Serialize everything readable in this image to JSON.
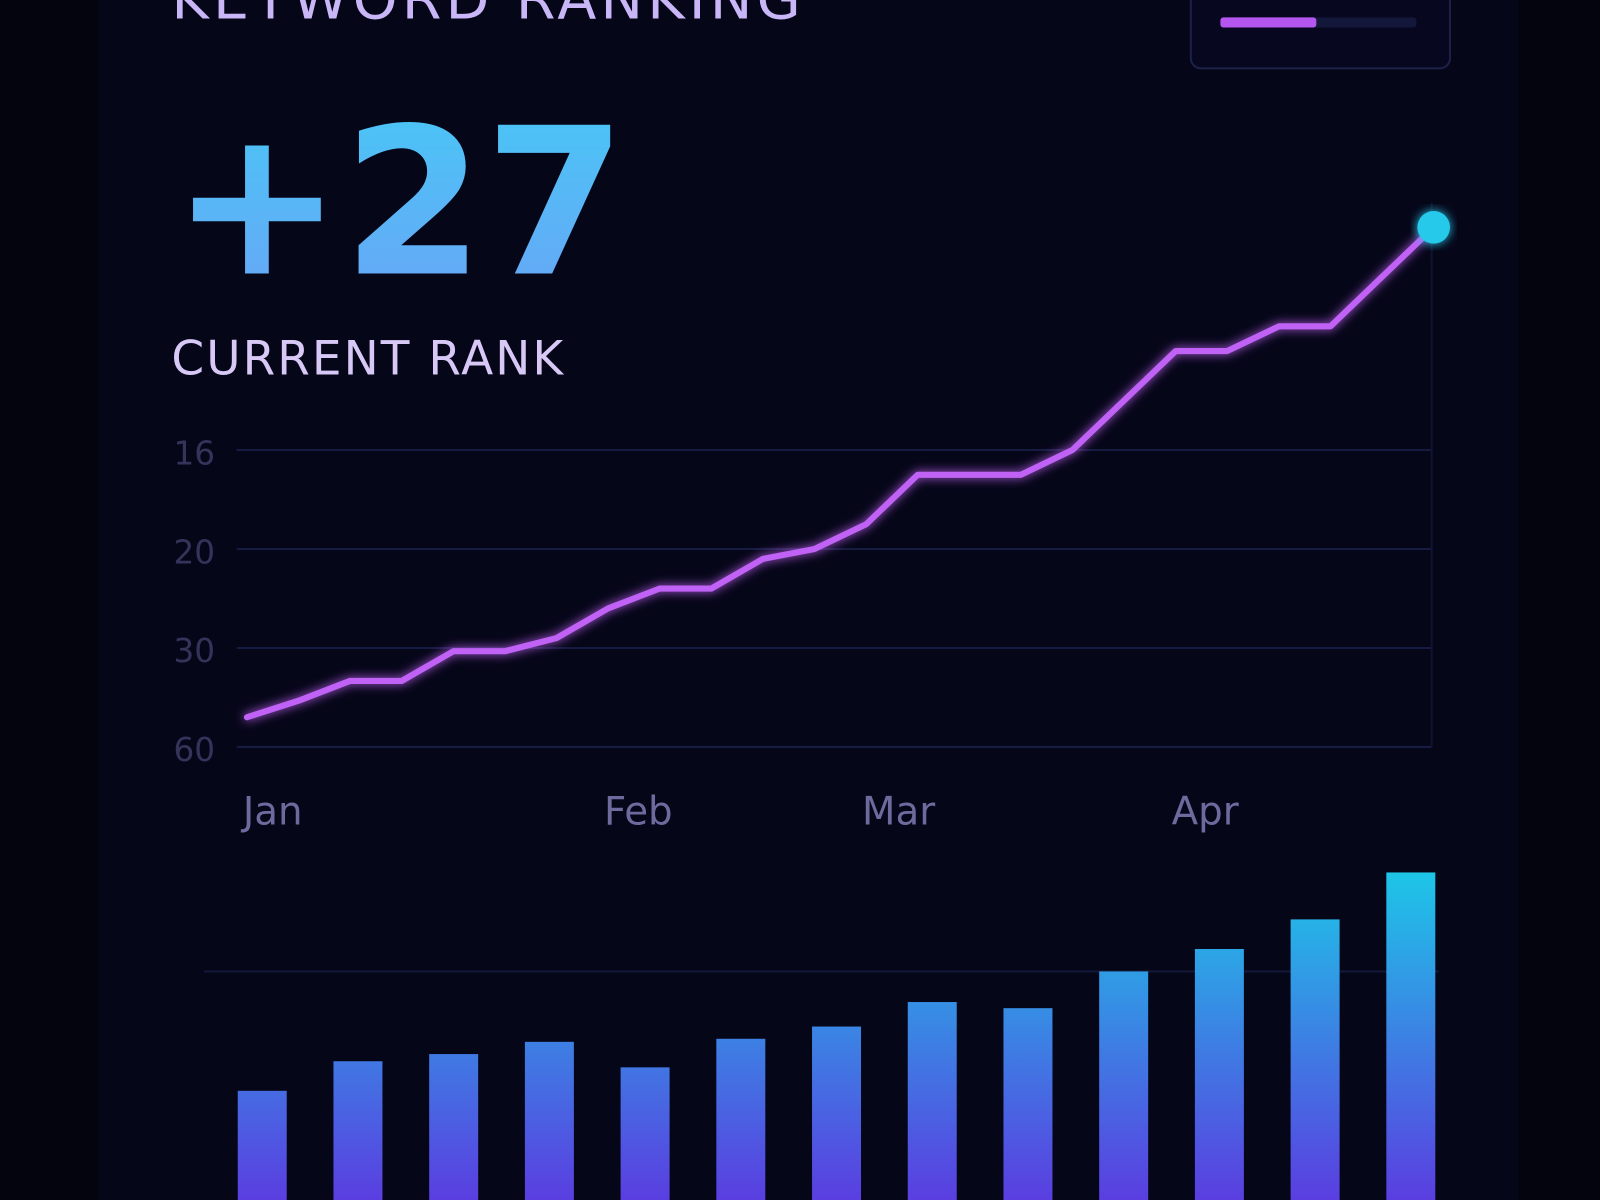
{
  "header": {
    "title": "KEYWORD RANKING"
  },
  "kpi": {
    "value": "+27",
    "label": "CURRENT RANK"
  },
  "chart_data": [
    {
      "type": "line",
      "categories": [
        "Jan",
        null,
        null,
        null,
        null,
        null,
        null,
        "Feb",
        null,
        null,
        null,
        null,
        "Mar",
        null,
        null,
        null,
        null,
        null,
        "Apr",
        null,
        null,
        null,
        null,
        null
      ],
      "series": [
        {
          "name": "Rank",
          "color": "#c062f5",
          "values": [
            51,
            46,
            40,
            40,
            31,
            31,
            29,
            26,
            24,
            24,
            21,
            20,
            19,
            17,
            17,
            17,
            16,
            14,
            12,
            12,
            11,
            11,
            9,
            7
          ]
        }
      ],
      "ylim": [
        60,
        6
      ],
      "yticks": [
        60,
        30,
        20,
        16
      ],
      "grid": true
    },
    {
      "type": "bar",
      "values": [
        107,
        136,
        143,
        155,
        130,
        158,
        170,
        194,
        188,
        224,
        246,
        275,
        321
      ],
      "ylim": [
        0,
        350
      ]
    }
  ]
}
